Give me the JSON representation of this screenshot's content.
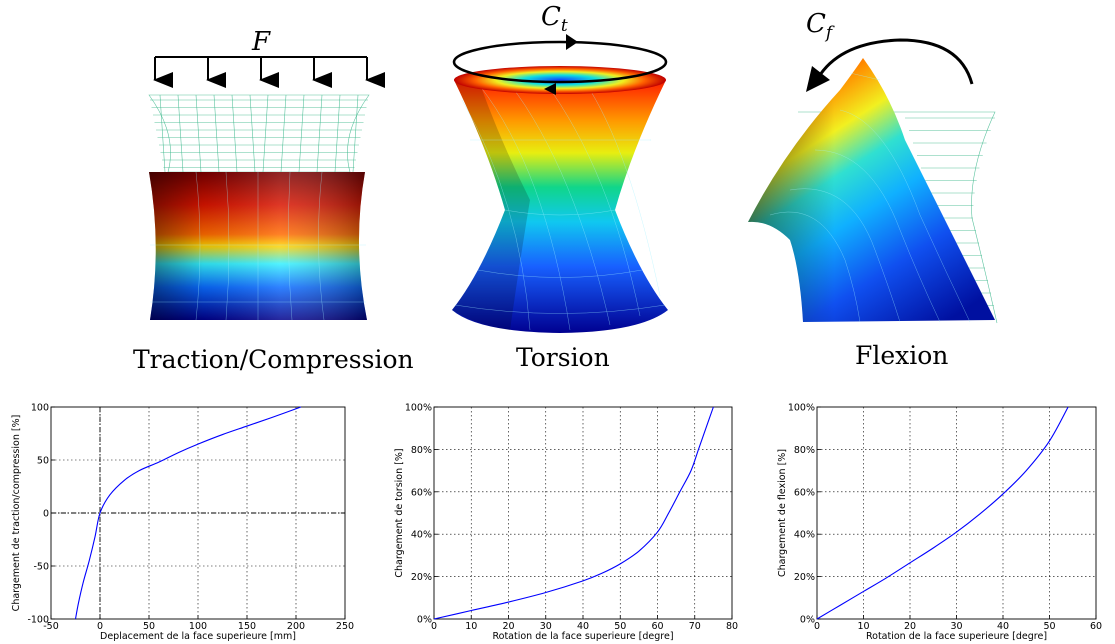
{
  "captions": {
    "traction": "Traction/Compression",
    "torsion": "Torsion",
    "flexion": "Flexion"
  },
  "symbols": {
    "force": "F",
    "torsion_base": "C",
    "torsion_sub": "t",
    "flexion_base": "C",
    "flexion_sub": "f"
  },
  "colors": {
    "curve": "#0000ff",
    "wireframe": "#3fb98e",
    "colormap": [
      "#00008b",
      "#0000ff",
      "#00bfff",
      "#00ffff",
      "#ffff00",
      "#ff8000",
      "#ff0000",
      "#8b0000"
    ]
  },
  "chart_data": [
    {
      "type": "line",
      "xlabel": "Deplacement de la face superieure [mm]",
      "ylabel": "Chargement de traction/compression [%]",
      "xlim": [
        -50,
        250
      ],
      "ylim": [
        -100,
        100
      ],
      "xticks": [
        -50,
        0,
        50,
        100,
        150,
        200,
        250
      ],
      "yticks": [
        -100,
        -50,
        0,
        50,
        100
      ],
      "ytick_suffix": "",
      "grid": true,
      "zero_lines": true,
      "series": [
        {
          "x": [
            -25,
            -22,
            -17,
            -11,
            -5,
            0,
            10,
            25,
            40,
            60,
            80,
            100,
            125,
            150,
            175,
            205
          ],
          "y": [
            -100,
            -85,
            -65,
            -45,
            -22,
            0,
            17,
            31,
            40,
            48,
            57,
            65,
            74,
            82,
            90,
            100
          ]
        }
      ]
    },
    {
      "type": "line",
      "xlabel": "Rotation de la face superieure [degre]",
      "ylabel": "Chargement de torsion [%]",
      "xlim": [
        0,
        80
      ],
      "ylim": [
        0,
        100
      ],
      "xticks": [
        0,
        10,
        20,
        30,
        40,
        50,
        60,
        70,
        80
      ],
      "yticks": [
        0,
        20,
        40,
        60,
        80,
        100
      ],
      "ytick_suffix": "%",
      "grid": true,
      "zero_lines": false,
      "series": [
        {
          "x": [
            0,
            10,
            20,
            30,
            40,
            45,
            50,
            55,
            60,
            63,
            66,
            69,
            71,
            73,
            75
          ],
          "y": [
            0,
            4,
            8,
            12.5,
            18,
            21.5,
            26,
            32,
            41,
            50,
            60,
            70,
            80,
            90,
            100
          ]
        }
      ]
    },
    {
      "type": "line",
      "xlabel": "Rotation de la face superieure [degre]",
      "ylabel": "Chargement de flexion [%]",
      "xlim": [
        0,
        60
      ],
      "ylim": [
        0,
        100
      ],
      "xticks": [
        0,
        10,
        20,
        30,
        40,
        50,
        60
      ],
      "yticks": [
        0,
        20,
        40,
        60,
        80,
        100
      ],
      "ytick_suffix": "%",
      "grid": true,
      "zero_lines": false,
      "series": [
        {
          "x": [
            0,
            5,
            10,
            15,
            20,
            25,
            30,
            35,
            40,
            45,
            50,
            54
          ],
          "y": [
            0,
            6.5,
            13,
            19.5,
            26.5,
            33.5,
            41,
            49.5,
            59,
            70,
            84,
            100
          ]
        }
      ]
    }
  ]
}
